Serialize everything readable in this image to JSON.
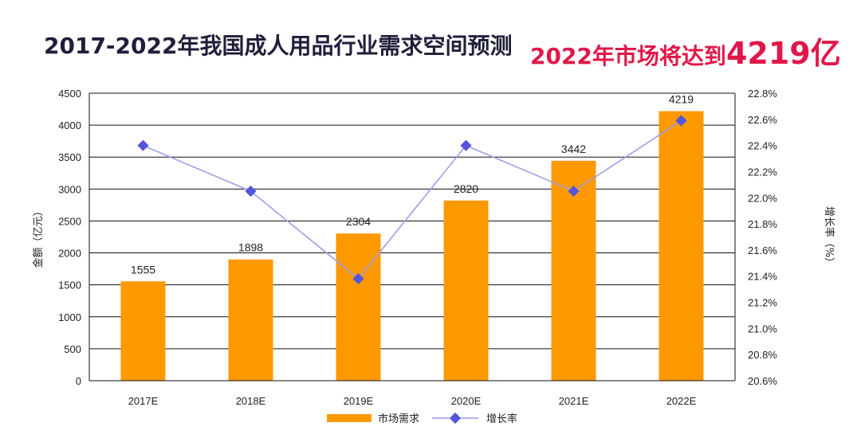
{
  "header": {
    "title": "2017-2022年我国成人用品行业需求空间预测",
    "subtitle_prefix": "2022年市场将达到",
    "subtitle_value": "4219亿"
  },
  "colors": {
    "bar": "#ff9900",
    "line": "#9999ee",
    "marker": "#5555dd",
    "title_dark": "#1f1f3a",
    "title_accent": "#e0184a"
  },
  "chart_data": {
    "type": "bar+line",
    "categories": [
      "2017E",
      "2018E",
      "2019E",
      "2020E",
      "2021E",
      "2022E"
    ],
    "series": [
      {
        "name": "市场需求",
        "type": "bar",
        "axis": "left",
        "values": [
          1555,
          1898,
          2304,
          2820,
          3442,
          4219
        ]
      },
      {
        "name": "增长率",
        "type": "line",
        "axis": "right",
        "values": [
          22.4,
          22.05,
          21.38,
          22.4,
          22.05,
          22.59
        ]
      }
    ],
    "ylabel": "金额（亿元）",
    "y2label": "增长率（%）",
    "ylim": [
      0,
      4500
    ],
    "y2lim": [
      20.6,
      22.8
    ],
    "yticks": [
      "0",
      "500",
      "1000",
      "1500",
      "2000",
      "2500",
      "3000",
      "3500",
      "4000",
      "4500"
    ],
    "y2ticks": [
      "20.6%",
      "20.8%",
      "21.0%",
      "21.2%",
      "21.4%",
      "21.6%",
      "21.8%",
      "22.0%",
      "22.2%",
      "22.4%",
      "22.6%",
      "22.8%"
    ],
    "grid": true,
    "legend": "bottom-center"
  }
}
